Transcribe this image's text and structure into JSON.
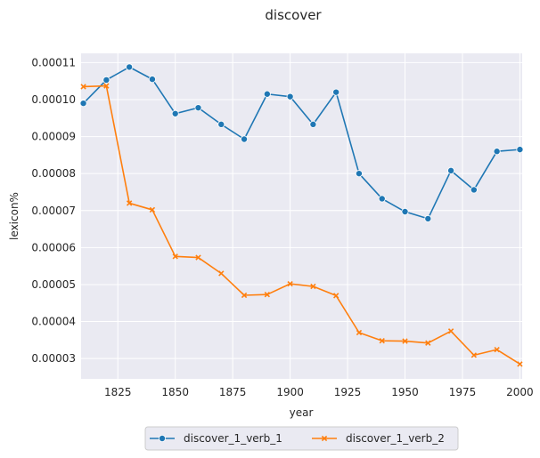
{
  "chart_data": {
    "type": "line",
    "title": "discover",
    "xlabel": "year",
    "ylabel": "lexicon%",
    "xlim": [
      1809,
      2001
    ],
    "ylim": [
      2.45e-05,
      0.0001125
    ],
    "x_ticks": [
      1825,
      1850,
      1875,
      1900,
      1925,
      1950,
      1975,
      2000
    ],
    "y_ticks": [
      3e-05,
      4e-05,
      5e-05,
      6e-05,
      7e-05,
      8e-05,
      9e-05,
      0.0001,
      0.00011
    ],
    "x_tick_labels": [
      "1825",
      "1850",
      "1875",
      "1900",
      "1925",
      "1950",
      "1975",
      "2000"
    ],
    "y_tick_labels": [
      "0.00003",
      "0.00004",
      "0.00005",
      "0.00006",
      "0.00007",
      "0.00008",
      "0.00009",
      "0.00010",
      "0.00011"
    ],
    "grid": true,
    "legend_position": "bottom-center",
    "x": [
      1810,
      1820,
      1830,
      1840,
      1850,
      1860,
      1870,
      1880,
      1890,
      1900,
      1910,
      1920,
      1930,
      1940,
      1950,
      1960,
      1970,
      1980,
      1990,
      2000
    ],
    "series": [
      {
        "name": "discover_1_verb_1",
        "color": "#1f77b4",
        "marker": "circle",
        "values": [
          9.9e-05,
          0.0001053,
          0.0001088,
          0.0001055,
          9.62e-05,
          9.78e-05,
          9.33e-05,
          8.93e-05,
          0.0001015,
          0.0001008,
          9.33e-05,
          0.000102,
          8e-05,
          7.32e-05,
          6.97e-05,
          6.78e-05,
          8.08e-05,
          7.56e-05,
          8.6e-05,
          8.65e-05
        ]
      },
      {
        "name": "discover_1_verb_2",
        "color": "#ff7f0e",
        "marker": "x",
        "values": [
          0.0001035,
          0.0001037,
          7.2e-05,
          7.02e-05,
          5.76e-05,
          5.73e-05,
          5.3e-05,
          4.71e-05,
          4.73e-05,
          5.02e-05,
          4.95e-05,
          4.7e-05,
          3.7e-05,
          3.48e-05,
          3.47e-05,
          3.42e-05,
          3.74e-05,
          3.09e-05,
          3.24e-05,
          2.85e-05
        ]
      }
    ]
  }
}
